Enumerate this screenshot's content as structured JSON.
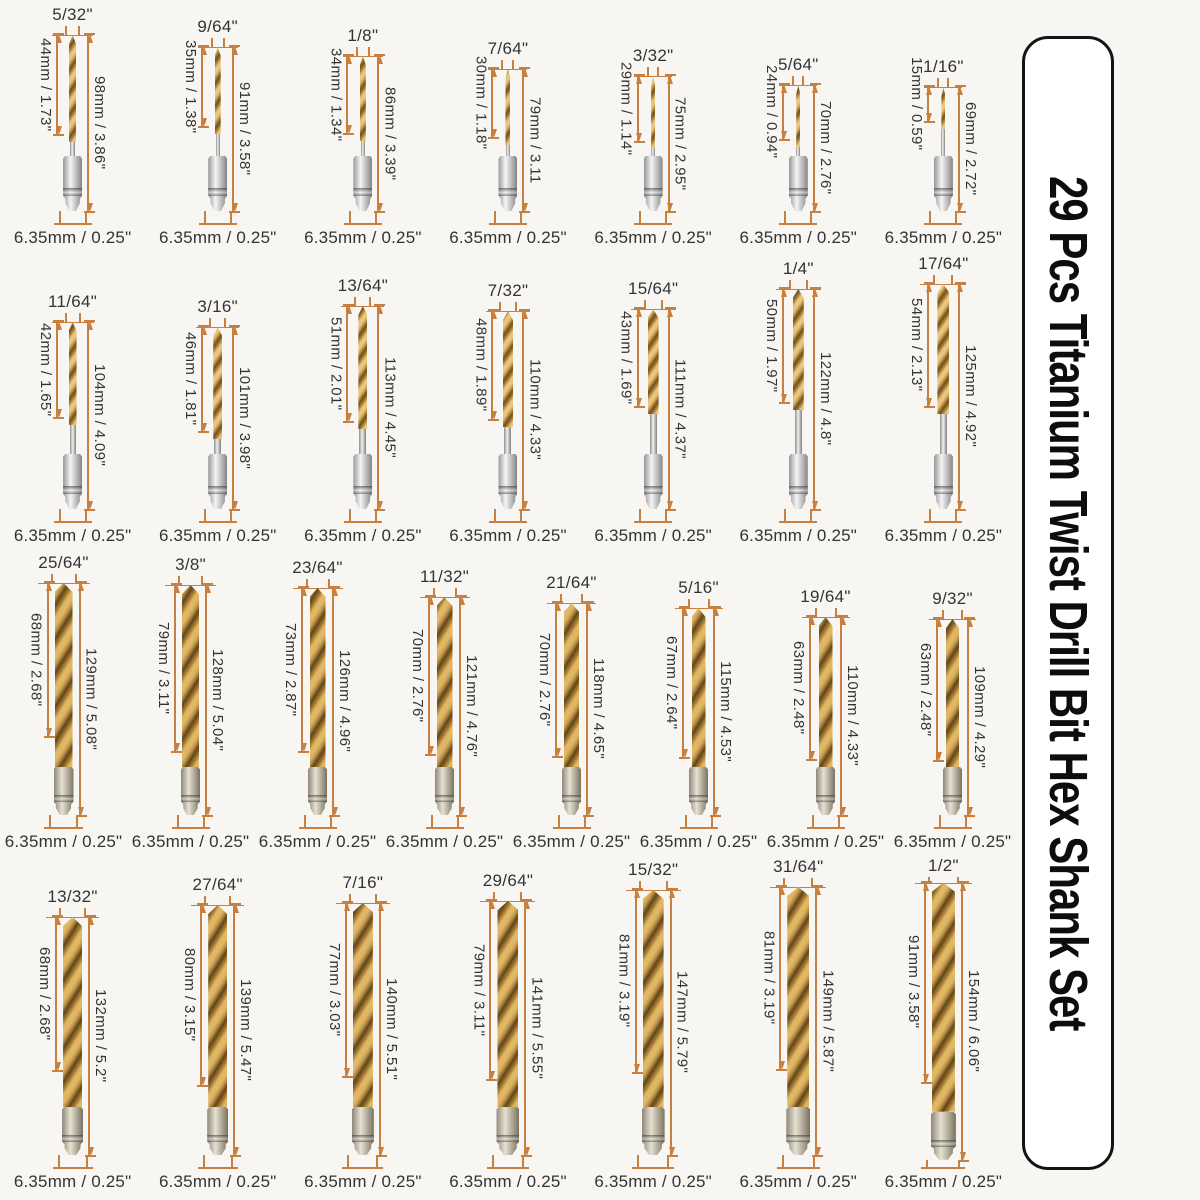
{
  "banner": {
    "title": "29 Pcs Titanium Twist Drill Bit Hex Shank Set",
    "bg_color": "#ffffff",
    "border_color": "#141414",
    "text_color": "#0d0d0d"
  },
  "style": {
    "background_color": "#f8f6f2",
    "dimension_line_color": "#c9803f",
    "text_color": "#333333",
    "flute_gold_color": "#c89b4b",
    "shank_silver_color": "#c9c9c9"
  },
  "rows": [
    {
      "style": "small",
      "bits": [
        {
          "size": "5/32\"",
          "flute": "44mm / 1.73\"",
          "total": "98mm / 3.86\"",
          "shank": "6.35mm / 0.25\""
        },
        {
          "size": "9/64\"",
          "flute": "35mm / 1.38\"",
          "total": "91mm / 3.58\"",
          "shank": "6.35mm / 0.25\""
        },
        {
          "size": "1/8\"",
          "flute": "34mm / 1.34\"",
          "total": "86mm / 3.39\"",
          "shank": "6.35mm / 0.25\""
        },
        {
          "size": "7/64\"",
          "flute": "30mm / 1.18\"",
          "total": "79mm / 3.11",
          "shank": "6.35mm / 0.25\""
        },
        {
          "size": "3/32\"",
          "flute": "29mm / 1.14\"",
          "total": "75mm / 2.95\"",
          "shank": "6.35mm / 0.25\""
        },
        {
          "size": "5/64\"",
          "flute": "24mm / 0.94\"",
          "total": "70mm / 2.76\"",
          "shank": "6.35mm / 0.25\""
        },
        {
          "size": "1/16\"",
          "flute": "15mm / 0.59\"",
          "total": "69mm / 2.72\"",
          "shank": "6.35mm / 0.25\""
        }
      ]
    },
    {
      "style": "small",
      "bits": [
        {
          "size": "11/64\"",
          "flute": "42mm / 1.65\"",
          "total": "104mm / 4.09\"",
          "shank": "6.35mm / 0.25\""
        },
        {
          "size": "3/16\"",
          "flute": "46mm / 1.81\"",
          "total": "101mm / 3.98\"",
          "shank": "6.35mm / 0.25\""
        },
        {
          "size": "13/64\"",
          "flute": "51mm / 2.01\"",
          "total": "113mm / 4.45\"",
          "shank": "6.35mm / 0.25\""
        },
        {
          "size": "7/32\"",
          "flute": "48mm / 1.89\"",
          "total": "110mm / 4.33\"",
          "shank": "6.35mm / 0.25\""
        },
        {
          "size": "15/64\"",
          "flute": "43mm / 1.69\"",
          "total": "111mm / 4.37\"",
          "shank": "6.35mm / 0.25\""
        },
        {
          "size": "1/4\"",
          "flute": "50mm / 1.97\"",
          "total": "122mm / 4.8\"",
          "shank": "6.35mm / 0.25\""
        },
        {
          "size": "17/64\"",
          "flute": "54mm / 2.13\"",
          "total": "125mm / 4.92\"",
          "shank": "6.35mm / 0.25\""
        }
      ]
    },
    {
      "style": "large",
      "bits": [
        {
          "size": "25/64\"",
          "flute": "68mm / 2.68\"",
          "total": "129mm / 5.08\"",
          "shank": "6.35mm / 0.25\""
        },
        {
          "size": "3/8\"",
          "flute": "79mm / 3.11\"",
          "total": "128mm / 5.04\"",
          "shank": "6.35mm / 0.25\""
        },
        {
          "size": "23/64\"",
          "flute": "73mm / 2.87\"",
          "total": "126mm / 4.96\"",
          "shank": "6.35mm / 0.25\""
        },
        {
          "size": "11/32\"",
          "flute": "70mm / 2.76\"",
          "total": "121mm / 4.76\"",
          "shank": "6.35mm / 0.25\""
        },
        {
          "size": "21/64\"",
          "flute": "70mm / 2.76\"",
          "total": "118mm / 4.65\"",
          "shank": "6.35mm / 0.25\""
        },
        {
          "size": "5/16\"",
          "flute": "67mm / 2.64\"",
          "total": "115mm / 4.53\"",
          "shank": "6.35mm / 0.25\""
        },
        {
          "size": "19/64\"",
          "flute": "63mm / 2.48\"",
          "total": "110mm / 4.33\"",
          "shank": "6.35mm / 0.25\""
        },
        {
          "size": "9/32\"",
          "flute": "63mm / 2.48\"",
          "total": "109mm / 4.29\"",
          "shank": "6.35mm / 0.25\""
        }
      ]
    },
    {
      "style": "large",
      "bits": [
        {
          "size": "13/32\"",
          "flute": "68mm / 2.68\"",
          "total": "132mm / 5.2\"",
          "shank": "6.35mm / 0.25\""
        },
        {
          "size": "27/64\"",
          "flute": "80mm / 3.15\"",
          "total": "139mm / 5.47\"",
          "shank": "6.35mm / 0.25\""
        },
        {
          "size": "7/16\"",
          "flute": "77mm / 3.03\"",
          "total": "140mm / 5.51\"",
          "shank": "6.35mm / 0.25\""
        },
        {
          "size": "29/64\"",
          "flute": "79mm / 3.11\"",
          "total": "141mm / 5.55\"",
          "shank": "6.35mm / 0.25\""
        },
        {
          "size": "15/32\"",
          "flute": "81mm / 3.19\"",
          "total": "147mm / 5.79\"",
          "shank": "6.35mm / 0.25\""
        },
        {
          "size": "31/64\"",
          "flute": "81mm / 3.19\"",
          "total": "149mm / 5.87\"",
          "shank": "6.35mm / 0.25\""
        },
        {
          "size": "1/2\"",
          "flute": "91mm / 3.58\"",
          "total": "154mm / 6.06\"",
          "shank": "6.35mm / 0.25\""
        }
      ]
    }
  ]
}
